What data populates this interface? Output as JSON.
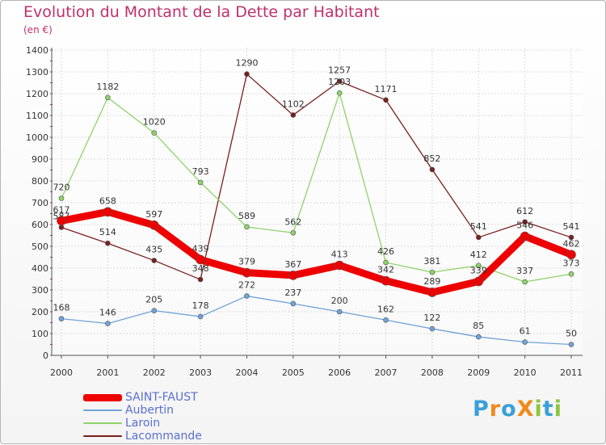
{
  "title": "Evolution du Montant de la Dette par Habitant",
  "subtitle": "(en €)",
  "brand": "ProXiti",
  "chart_data": {
    "type": "line",
    "title": "Evolution du Montant de la Dette par Habitant",
    "subtitle": "(en €)",
    "xlabel": "",
    "ylabel": "",
    "x": [
      "2000",
      "2001",
      "2002",
      "2003",
      "2004",
      "2005",
      "2006",
      "2007",
      "2008",
      "2009",
      "2010",
      "2011"
    ],
    "ylim": [
      0,
      1400
    ],
    "yticks": [
      0,
      100,
      200,
      300,
      400,
      500,
      600,
      700,
      800,
      900,
      1000,
      1100,
      1200,
      1300,
      1400
    ],
    "grid": true,
    "legend_position": "bottom-left",
    "series": [
      {
        "name": "Lacommande",
        "color": "#7a1f1f",
        "values": [
          587,
          514,
          435,
          348,
          1290,
          1102,
          1257,
          1171,
          852,
          541,
          612,
          541
        ],
        "labels": [
          "587",
          "514",
          "435",
          "348",
          "1290",
          "1102",
          "1257",
          "1171",
          "852",
          "541",
          "612",
          "541"
        ]
      },
      {
        "name": "Laroin",
        "color": "#8ed36a",
        "values": [
          720,
          1182,
          1020,
          793,
          589,
          562,
          1203,
          426,
          381,
          412,
          337,
          373
        ],
        "labels": [
          "720",
          "1182",
          "1020",
          "793",
          "589",
          "562",
          "1203",
          "426",
          "381",
          "412",
          "337",
          "373"
        ]
      },
      {
        "name": "Aubertin",
        "color": "#6fa3d8",
        "values": [
          168,
          146,
          205,
          178,
          272,
          237,
          200,
          162,
          122,
          85,
          61,
          50
        ],
        "labels": [
          "168",
          "146",
          "205",
          "178",
          "272",
          "237",
          "200",
          "162",
          "122",
          "85",
          "61",
          "50"
        ]
      },
      {
        "name": "SAINT-FAUST",
        "color": "#ee0000",
        "values": [
          617,
          658,
          597,
          439,
          379,
          367,
          413,
          342,
          289,
          339,
          546,
          462
        ],
        "labels": [
          "617",
          "658",
          "597",
          "439",
          "379",
          "367",
          "413",
          "342",
          "289",
          "339",
          "546",
          "462"
        ]
      }
    ]
  },
  "legend": [
    {
      "label": "SAINT-FAUST",
      "color": "#ee0000"
    },
    {
      "label": "Aubertin",
      "color": "#6fa3d8"
    },
    {
      "label": "Laroin",
      "color": "#8ed36a"
    },
    {
      "label": "Lacommande",
      "color": "#7a1f1f"
    }
  ]
}
